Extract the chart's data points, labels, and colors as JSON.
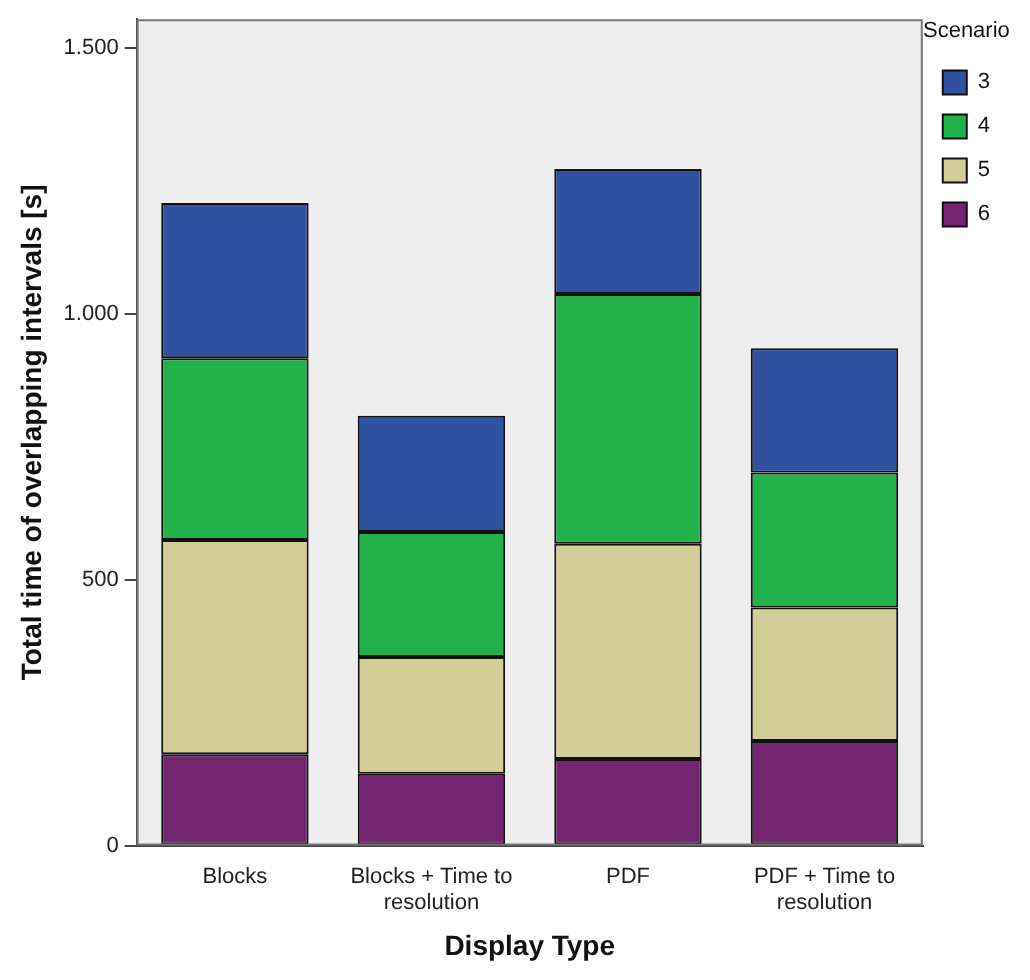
{
  "chart_data": {
    "type": "bar",
    "stacked": true,
    "xlabel": "Display Type",
    "ylabel": "Total time of overlapping intervals [s]",
    "legend_title": "Scenario",
    "categories": [
      "Blocks",
      "Blocks + Time to resolution",
      "PDF",
      "PDF + Time to resolution"
    ],
    "series": [
      {
        "name": "6",
        "color": "#73256f",
        "values": [
          172,
          135,
          163,
          197
        ]
      },
      {
        "name": "5",
        "color": "#d3ce97",
        "values": [
          403,
          220,
          405,
          251
        ]
      },
      {
        "name": "4",
        "color": "#22b24c",
        "values": [
          342,
          235,
          470,
          254
        ]
      },
      {
        "name": "3",
        "color": "#3051a0",
        "values": [
          292,
          219,
          235,
          234
        ]
      }
    ],
    "ylim": [
      0,
      1555
    ],
    "yticks": [
      0,
      500,
      {
        "value": 1000,
        "label": "1.000"
      },
      {
        "value": 1500,
        "label": "1.500"
      }
    ],
    "grid": false,
    "legend": "right"
  }
}
